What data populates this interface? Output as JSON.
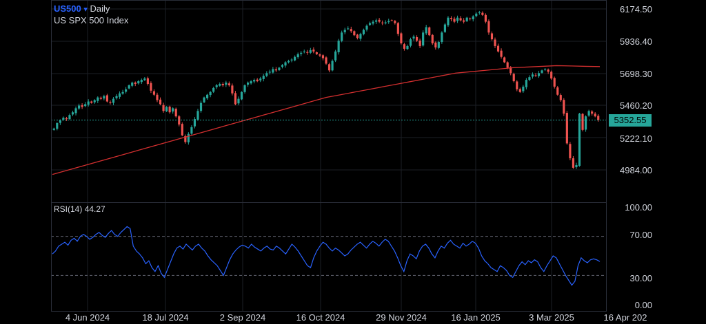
{
  "header": {
    "symbol": "US500",
    "dropdown_glyph": "▾",
    "interval": "Daily",
    "description": "US SPX 500 Index"
  },
  "rsi": {
    "label": "RSI(14)",
    "value": "44.27"
  },
  "price_axis": {
    "ticks": [
      "6174.50",
      "5936.40",
      "5698.30",
      "5460.20",
      "5222.10",
      "4984.00"
    ],
    "current_price": "5352.55"
  },
  "rsi_axis": {
    "ticks": [
      "100.00",
      "70.00",
      "30.00",
      "0.00"
    ]
  },
  "time_axis": {
    "ticks": [
      "4 Jun 2024",
      "18 Jul 2024",
      "2 Sep 2024",
      "16 Oct 2024",
      "29 Nov 2024",
      "16 Jan 2025",
      "3 Mar 2025",
      "16 Apr 202"
    ]
  },
  "colors": {
    "up": "#26a69a",
    "down": "#ef5350",
    "ma": "#d32f2f",
    "rsi_line": "#2962ff",
    "last_price_line": "#26a69a",
    "grid": "#1c1f26",
    "background": "#000000"
  },
  "chart_data": [
    {
      "type": "candlestick",
      "title": "US SPX 500 Index",
      "interval": "Daily",
      "ylim": [
        4900,
        6230
      ],
      "x_ticks": [
        "4 Jun 2024",
        "18 Jul 2024",
        "2 Sep 2024",
        "16 Oct 2024",
        "29 Nov 2024",
        "16 Jan 2025",
        "3 Mar 2025",
        "16 Apr 202"
      ],
      "close": [
        5290,
        5330,
        5350,
        5370,
        5360,
        5390,
        5410,
        5440,
        5460,
        5450,
        5470,
        5490,
        5480,
        5500,
        5520,
        5510,
        5530,
        5490,
        5480,
        5510,
        5530,
        5550,
        5560,
        5580,
        5610,
        5630,
        5620,
        5640,
        5650,
        5660,
        5620,
        5570,
        5540,
        5500,
        5470,
        5420,
        5450,
        5410,
        5440,
        5380,
        5320,
        5240,
        5190,
        5250,
        5300,
        5360,
        5420,
        5480,
        5520,
        5540,
        5560,
        5590,
        5610,
        5620,
        5610,
        5630,
        5610,
        5550,
        5470,
        5510,
        5560,
        5610,
        5630,
        5640,
        5650,
        5640,
        5660,
        5680,
        5700,
        5710,
        5730,
        5720,
        5740,
        5760,
        5780,
        5790,
        5800,
        5820,
        5840,
        5850,
        5860,
        5850,
        5870,
        5860,
        5840,
        5830,
        5810,
        5770,
        5720,
        5790,
        5860,
        5940,
        6000,
        6020,
        6030,
        6010,
        5980,
        5960,
        5990,
        6020,
        6050,
        6070,
        6080,
        6090,
        6080,
        6070,
        6075,
        6085,
        6090,
        6070,
        5990,
        5920,
        5880,
        5900,
        5950,
        5970,
        5940,
        5900,
        6000,
        6040,
        5980,
        5920,
        5890,
        5930,
        6000,
        6060,
        6110,
        6100,
        6080,
        6110,
        6090,
        6080,
        6110,
        6100,
        6120,
        6140,
        6150,
        6130,
        6080,
        6000,
        5950,
        5900,
        5860,
        5820,
        5780,
        5740,
        5700,
        5640,
        5580,
        5560,
        5600,
        5650,
        5670,
        5690,
        5680,
        5700,
        5720,
        5730,
        5710,
        5660,
        5600,
        5540,
        5500,
        5400,
        5180,
        5070,
        5000,
        5020,
        5400,
        5280,
        5380,
        5420,
        5400,
        5380,
        5352.55
      ],
      "ma_line": [
        4950,
        4980,
        5010,
        5040,
        5070,
        5100,
        5130,
        5160,
        5190,
        5220,
        5250,
        5280,
        5310,
        5340,
        5370,
        5400,
        5430,
        5460,
        5490,
        5520,
        5540,
        5560,
        5580,
        5600,
        5620,
        5640,
        5660,
        5680,
        5700,
        5710,
        5720,
        5730,
        5740,
        5745,
        5750,
        5755,
        5753,
        5750,
        5748
      ]
    },
    {
      "type": "line",
      "title": "RSI(14)",
      "ylim": [
        0,
        100
      ],
      "levels": [
        70,
        30
      ],
      "last_value": 44.27,
      "values": [
        52,
        55,
        60,
        62,
        64,
        61,
        66,
        68,
        65,
        70,
        72,
        70,
        67,
        69,
        72,
        74,
        71,
        69,
        73,
        76,
        72,
        70,
        74,
        77,
        80,
        78,
        60,
        55,
        52,
        48,
        42,
        45,
        38,
        34,
        40,
        32,
        28,
        36,
        44,
        52,
        58,
        60,
        57,
        62,
        59,
        56,
        60,
        62,
        58,
        55,
        50,
        46,
        43,
        40,
        35,
        30,
        38,
        46,
        52,
        56,
        59,
        61,
        60,
        58,
        62,
        59,
        57,
        55,
        58,
        60,
        57,
        56,
        60,
        58,
        55,
        52,
        57,
        62,
        59,
        55,
        50,
        45,
        40,
        38,
        48,
        55,
        60,
        64,
        62,
        58,
        55,
        58,
        56,
        53,
        50,
        52,
        56,
        59,
        62,
        64,
        61,
        58,
        62,
        65,
        63,
        60,
        64,
        67,
        65,
        60,
        55,
        48,
        40,
        34,
        45,
        52,
        50,
        47,
        55,
        60,
        62,
        58,
        52,
        48,
        55,
        60,
        58,
        63,
        66,
        62,
        60,
        58,
        63,
        60,
        62,
        65,
        63,
        58,
        50,
        45,
        42,
        38,
        36,
        34,
        40,
        38,
        35,
        30,
        28,
        34,
        40,
        44,
        41,
        45,
        43,
        46,
        44,
        38,
        34,
        40,
        45,
        50,
        48,
        42,
        36,
        30,
        25,
        20,
        24,
        40,
        48,
        45,
        43,
        46,
        47,
        46,
        44.27
      ]
    }
  ]
}
